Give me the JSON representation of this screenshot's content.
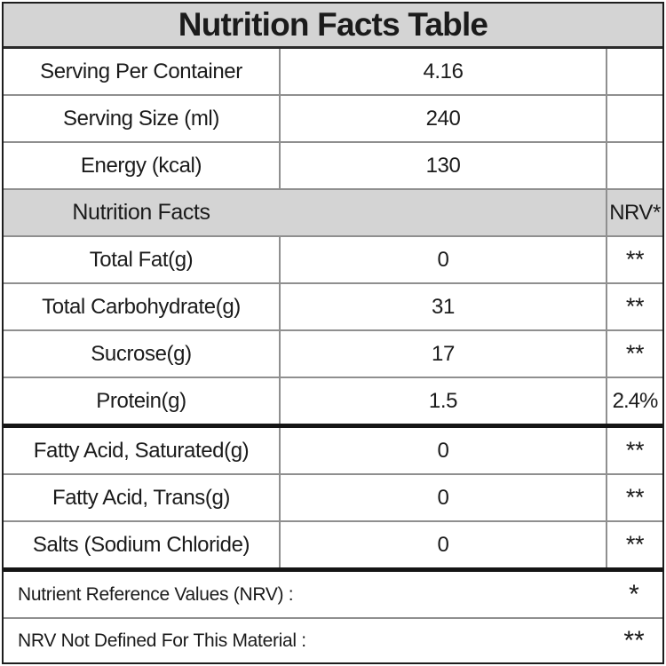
{
  "title": "Nutrition Facts Table",
  "info_rows": [
    {
      "label": "Serving Per Container",
      "value": "4.16",
      "nrv": ""
    },
    {
      "label": "Serving Size (ml)",
      "value": "240",
      "nrv": ""
    },
    {
      "label": "Energy (kcal)",
      "value": "130",
      "nrv": ""
    }
  ],
  "section_header": {
    "label": "Nutrition Facts",
    "nrv_label": "NRV*"
  },
  "nutrient_rows": [
    {
      "label": "Total Fat(g)",
      "value": "0",
      "nrv": "**"
    },
    {
      "label": "Total Carbohydrate(g)",
      "value": "31",
      "nrv": "**"
    },
    {
      "label": "Sucrose(g)",
      "value": "17",
      "nrv": "**"
    },
    {
      "label": "Protein(g)",
      "value": "1.5",
      "nrv": "2.4%"
    },
    {
      "label": "Fatty Acid, Saturated(g)",
      "value": "0",
      "nrv": "**"
    },
    {
      "label": "Fatty Acid, Trans(g)",
      "value": "0",
      "nrv": "**"
    },
    {
      "label": "Salts (Sodium Chloride)",
      "value": "0",
      "nrv": "**"
    }
  ],
  "footnotes": [
    {
      "label": "Nutrient Reference Values (NRV) :",
      "symbol": "*"
    },
    {
      "label": "NRV Not Defined For This Material :",
      "symbol": "**"
    }
  ],
  "colors": {
    "header_background": "#d4d4d4",
    "grid_line": "#8f8f8f",
    "outer_border": "#1d1d1d",
    "thick_separator": "#151515",
    "text": "#1b1b1b"
  }
}
